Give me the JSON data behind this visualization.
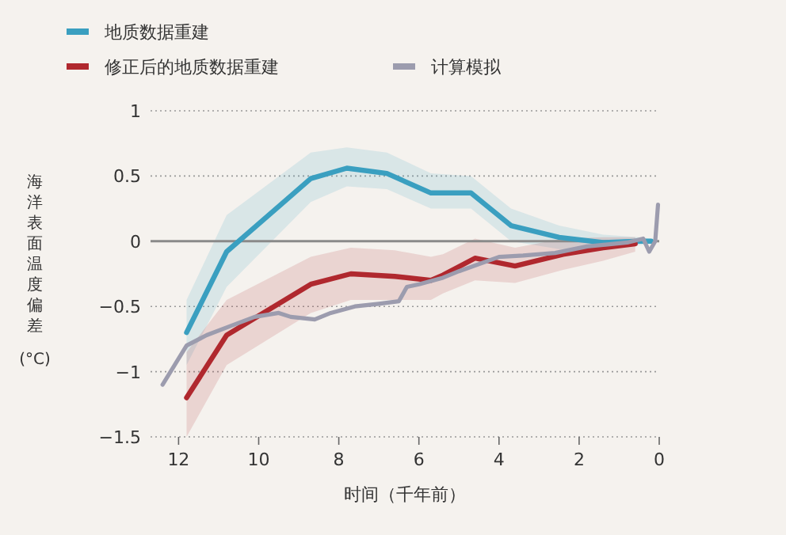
{
  "chart_data": {
    "type": "line",
    "xlabel": "时间（千年前）",
    "ylabel": "海洋表面温度偏差 (°C)",
    "xlim": [
      12.7,
      0
    ],
    "ylim": [
      -1.5,
      1
    ],
    "xticks": [
      12,
      10,
      8,
      6,
      4,
      2,
      0
    ],
    "yticks": [
      -1.5,
      -1,
      -0.5,
      0,
      0.5,
      1
    ],
    "grid": "y",
    "legend": "top left",
    "line_style": "solid",
    "marker": "none",
    "ref_lines": [
      {
        "axis": "y",
        "value": 0,
        "color": "#8a8a8a"
      }
    ],
    "series": [
      {
        "name": "地质数据重建",
        "color": "#3a9fc0",
        "x": [
          11.8,
          10.8,
          8.7,
          7.8,
          6.8,
          5.7,
          4.7,
          3.7,
          2.5,
          1.4,
          0.5,
          0.2
        ],
        "values": [
          -0.7,
          -0.08,
          0.48,
          0.56,
          0.52,
          0.37,
          0.37,
          0.12,
          0.03,
          -0.01,
          0,
          0
        ],
        "lower": [
          -0.95,
          -0.35,
          0.3,
          0.42,
          0.4,
          0.25,
          0.25,
          0,
          -0.06,
          -0.06,
          -0.03,
          -0.02
        ],
        "upper": [
          -0.45,
          0.2,
          0.68,
          0.72,
          0.68,
          0.52,
          0.5,
          0.25,
          0.12,
          0.05,
          0.03,
          0.02
        ]
      },
      {
        "name": "修正后的地质数据重建",
        "color": "#b0282e",
        "x": [
          11.8,
          10.8,
          8.7,
          7.7,
          6.6,
          5.7,
          5.4,
          4.6,
          3.6,
          2.4,
          1.4,
          0.6
        ],
        "values": [
          -1.2,
          -0.72,
          -0.33,
          -0.25,
          -0.27,
          -0.3,
          -0.26,
          -0.13,
          -0.19,
          -0.1,
          -0.05,
          -0.02
        ],
        "lower": [
          -1.5,
          -0.95,
          -0.55,
          -0.45,
          -0.45,
          -0.45,
          -0.4,
          -0.3,
          -0.32,
          -0.22,
          -0.15,
          -0.08
        ],
        "upper": [
          -0.85,
          -0.45,
          -0.12,
          -0.05,
          -0.07,
          -0.12,
          -0.1,
          0.02,
          -0.05,
          0.02,
          0.03,
          0.03
        ]
      },
      {
        "name": "计算模拟",
        "color": "#9c9cae",
        "x": [
          12.4,
          12.1,
          11.8,
          11.3,
          10.7,
          10.1,
          9.5,
          9.2,
          8.6,
          8.2,
          7.6,
          7.0,
          6.5,
          6.3,
          6.0,
          5.4,
          5.0,
          4.0,
          3.4,
          2.6,
          1.8,
          0.8,
          0.4,
          0.25,
          0.1,
          0.03
        ],
        "values": [
          -1.1,
          -0.95,
          -0.8,
          -0.72,
          -0.65,
          -0.58,
          -0.55,
          -0.58,
          -0.6,
          -0.55,
          -0.5,
          -0.48,
          -0.46,
          -0.35,
          -0.33,
          -0.28,
          -0.23,
          -0.12,
          -0.11,
          -0.09,
          -0.04,
          -0.01,
          0.02,
          -0.08,
          0,
          0.28
        ]
      }
    ]
  }
}
